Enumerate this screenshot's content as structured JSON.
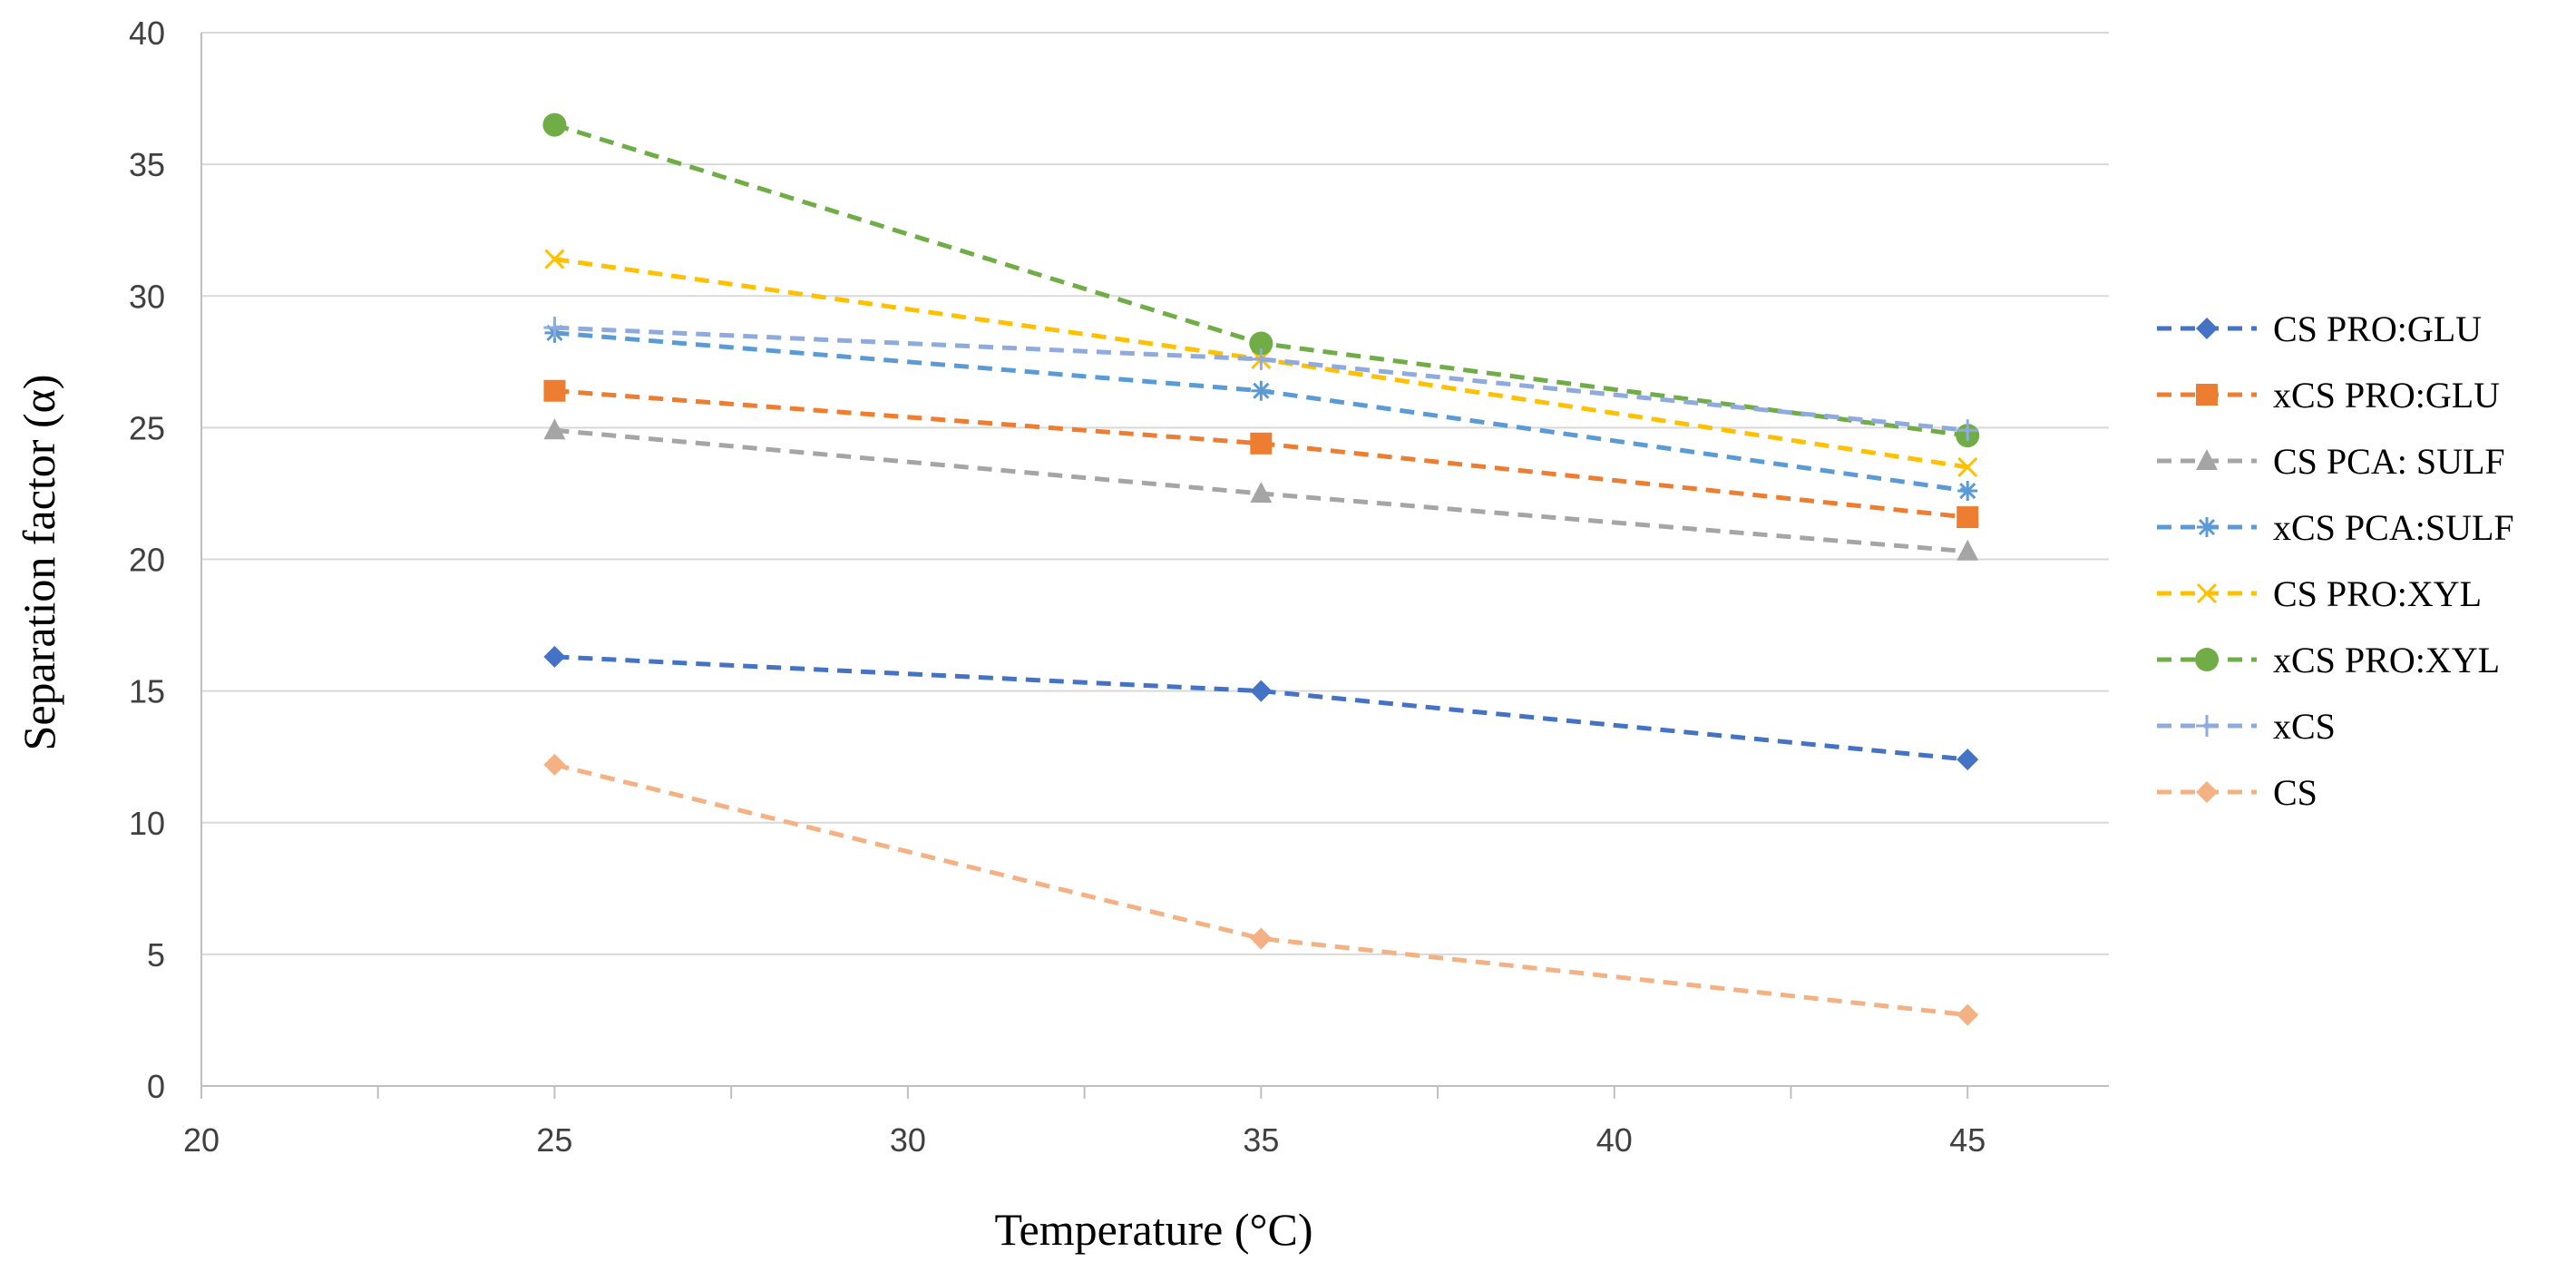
{
  "chart_data": {
    "type": "line",
    "title": "",
    "xlabel": "Temperature (°C)",
    "ylabel": "Separation factor (α)",
    "xlim": [
      20,
      47
    ],
    "ylim": [
      0,
      40
    ],
    "x_ticks": [
      "20",
      "25",
      "30",
      "35",
      "40",
      "45"
    ],
    "y_ticks": [
      "0",
      "5",
      "10",
      "15",
      "20",
      "25",
      "30",
      "35",
      "40"
    ],
    "grid": "horizontal",
    "legend_position": "right",
    "x": [
      25,
      35,
      45
    ],
    "series": [
      {
        "name": "CS PRO:GLU",
        "values": [
          16.3,
          15.0,
          12.4
        ],
        "color": "#4472C4",
        "marker": "diamond"
      },
      {
        "name": "xCS PRO:GLU",
        "values": [
          26.4,
          24.4,
          21.6
        ],
        "color": "#ED7D31",
        "marker": "square"
      },
      {
        "name": "CS PCA: SULF",
        "values": [
          24.9,
          22.5,
          20.3
        ],
        "color": "#A5A5A5",
        "marker": "triangle"
      },
      {
        "name": "xCS PCA:SULF",
        "values": [
          28.6,
          26.4,
          22.6
        ],
        "color": "#5B9BD5",
        "marker": "asterisk"
      },
      {
        "name": "CS PRO:XYL",
        "values": [
          31.4,
          27.6,
          23.5
        ],
        "color": "#FFC000",
        "marker": "x"
      },
      {
        "name": "xCS PRO:XYL",
        "values": [
          36.5,
          28.2,
          24.7
        ],
        "color": "#70AD47",
        "marker": "circle"
      },
      {
        "name": "xCS",
        "values": [
          28.8,
          27.6,
          24.9
        ],
        "color": "#8FAADC",
        "marker": "plus"
      },
      {
        "name": "CS",
        "values": [
          12.2,
          5.6,
          2.7
        ],
        "color": "#F4B183",
        "marker": "diamond"
      }
    ]
  }
}
